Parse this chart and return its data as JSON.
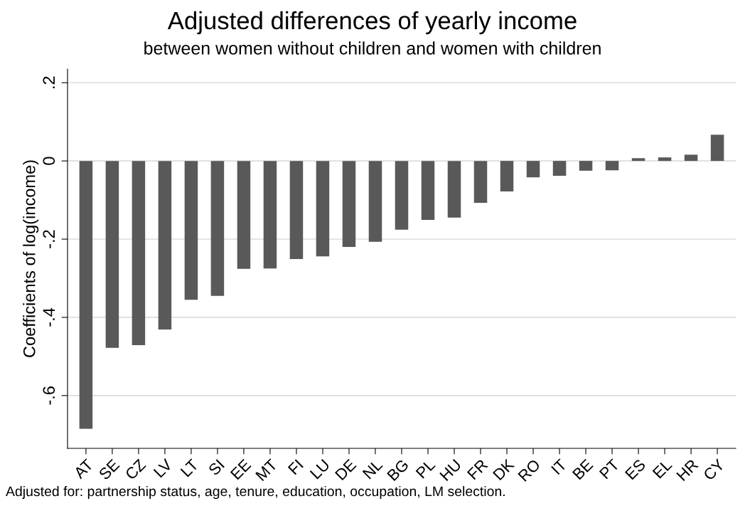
{
  "chart_data": {
    "type": "bar",
    "title": "Adjusted differences of yearly income",
    "subtitle": "between women without children and women with children",
    "ylabel": "Coefficients of log(income)",
    "categories": [
      "AT",
      "SE",
      "CZ",
      "LV",
      "LT",
      "SI",
      "EE",
      "MT",
      "FI",
      "LU",
      "DE",
      "NL",
      "BG",
      "PL",
      "HU",
      "FR",
      "DK",
      "RO",
      "IT",
      "BE",
      "PT",
      "ES",
      "EL",
      "HR",
      "CY"
    ],
    "values": [
      -0.685,
      -0.478,
      -0.471,
      -0.431,
      -0.355,
      -0.345,
      -0.276,
      -0.275,
      -0.251,
      -0.244,
      -0.22,
      -0.207,
      -0.176,
      -0.151,
      -0.145,
      -0.107,
      -0.078,
      -0.042,
      -0.038,
      -0.025,
      -0.024,
      0.007,
      0.009,
      0.016,
      0.067
    ],
    "color": "#595959",
    "ylim": [
      -0.735,
      0.235
    ],
    "yticks": [
      {
        "value": -0.6,
        "label": "-.6"
      },
      {
        "value": -0.4,
        "label": "-.4"
      },
      {
        "value": -0.2,
        "label": "-.2"
      },
      0,
      {
        "value": 0.2,
        "label": ".2"
      }
    ],
    "grid": "y",
    "annotations": [
      "Adjusted for: partnership status, age, tenure, education, occupation, LM selection."
    ]
  }
}
